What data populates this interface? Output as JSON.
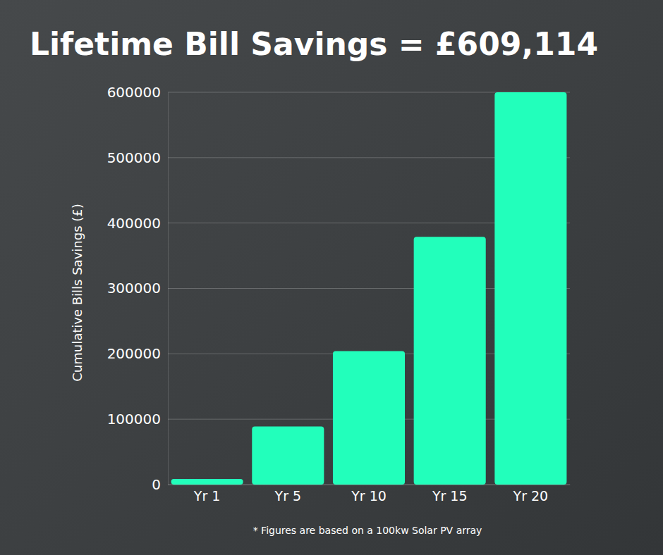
{
  "chart_data": {
    "type": "bar",
    "title": "Lifetime Bill Savings = £609,114",
    "y_label": "Cumulative Bills Savings (£)",
    "footnote": "* Figures are based on a 100kw Solar PV array",
    "categories": [
      "Yr 1",
      "Yr 5",
      "Yr 10",
      "Yr 15",
      "Yr 20"
    ],
    "values": [
      8500,
      89000,
      204000,
      379000,
      600000
    ],
    "color": "#22ffbb",
    "ylim": [
      0,
      600000
    ],
    "yticks": [
      0,
      100000,
      200000,
      300000,
      400000,
      500000,
      600000
    ],
    "grid": true
  }
}
